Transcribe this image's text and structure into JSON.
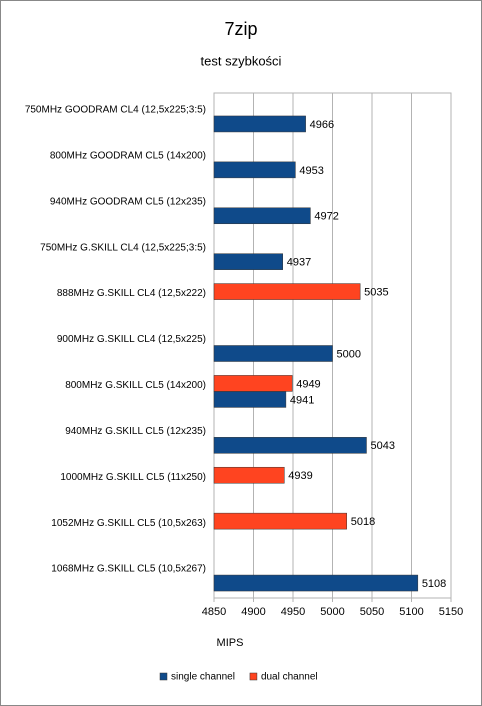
{
  "chart_data": {
    "type": "bar",
    "orientation": "horizontal",
    "title": "7zip",
    "subtitle": "test szybkości",
    "x_label": "MIPS",
    "categories": [
      "750MHz GOODRAM CL4 (12,5x225;3:5)",
      "800MHz GOODRAM CL5 (14x200)",
      "940MHz GOODRAM CL5 (12x235)",
      "750MHz G.SKILL CL4 (12,5x225;3:5)",
      "888MHz G.SKILL CL4 (12,5x222)",
      "900MHz G.SKILL CL4 (12,5x225)",
      "800MHz G.SKILL CL5 (14x200)",
      "940MHz G.SKILL CL5 (12x235)",
      "1000MHz G.SKILL CL5 (11x250)",
      "1052MHz G.SKILL CL5 (10,5x263)",
      "1068MHz G.SKILL CL5 (10,5x267)"
    ],
    "series": [
      {
        "name": "single channel",
        "color": "#0f4a8a",
        "values": [
          4966,
          4953,
          4972,
          4937,
          null,
          5000,
          4941,
          5043,
          null,
          null,
          5108
        ]
      },
      {
        "name": "dual channel",
        "color": "#ff4420",
        "values": [
          null,
          null,
          null,
          null,
          5035,
          null,
          4949,
          null,
          4939,
          5018,
          null
        ]
      }
    ],
    "xlim": [
      4850,
      5150
    ],
    "xticks": [
      4850,
      4900,
      4950,
      5000,
      5050,
      5100,
      5150
    ],
    "grid": true,
    "legend": "bottom"
  }
}
